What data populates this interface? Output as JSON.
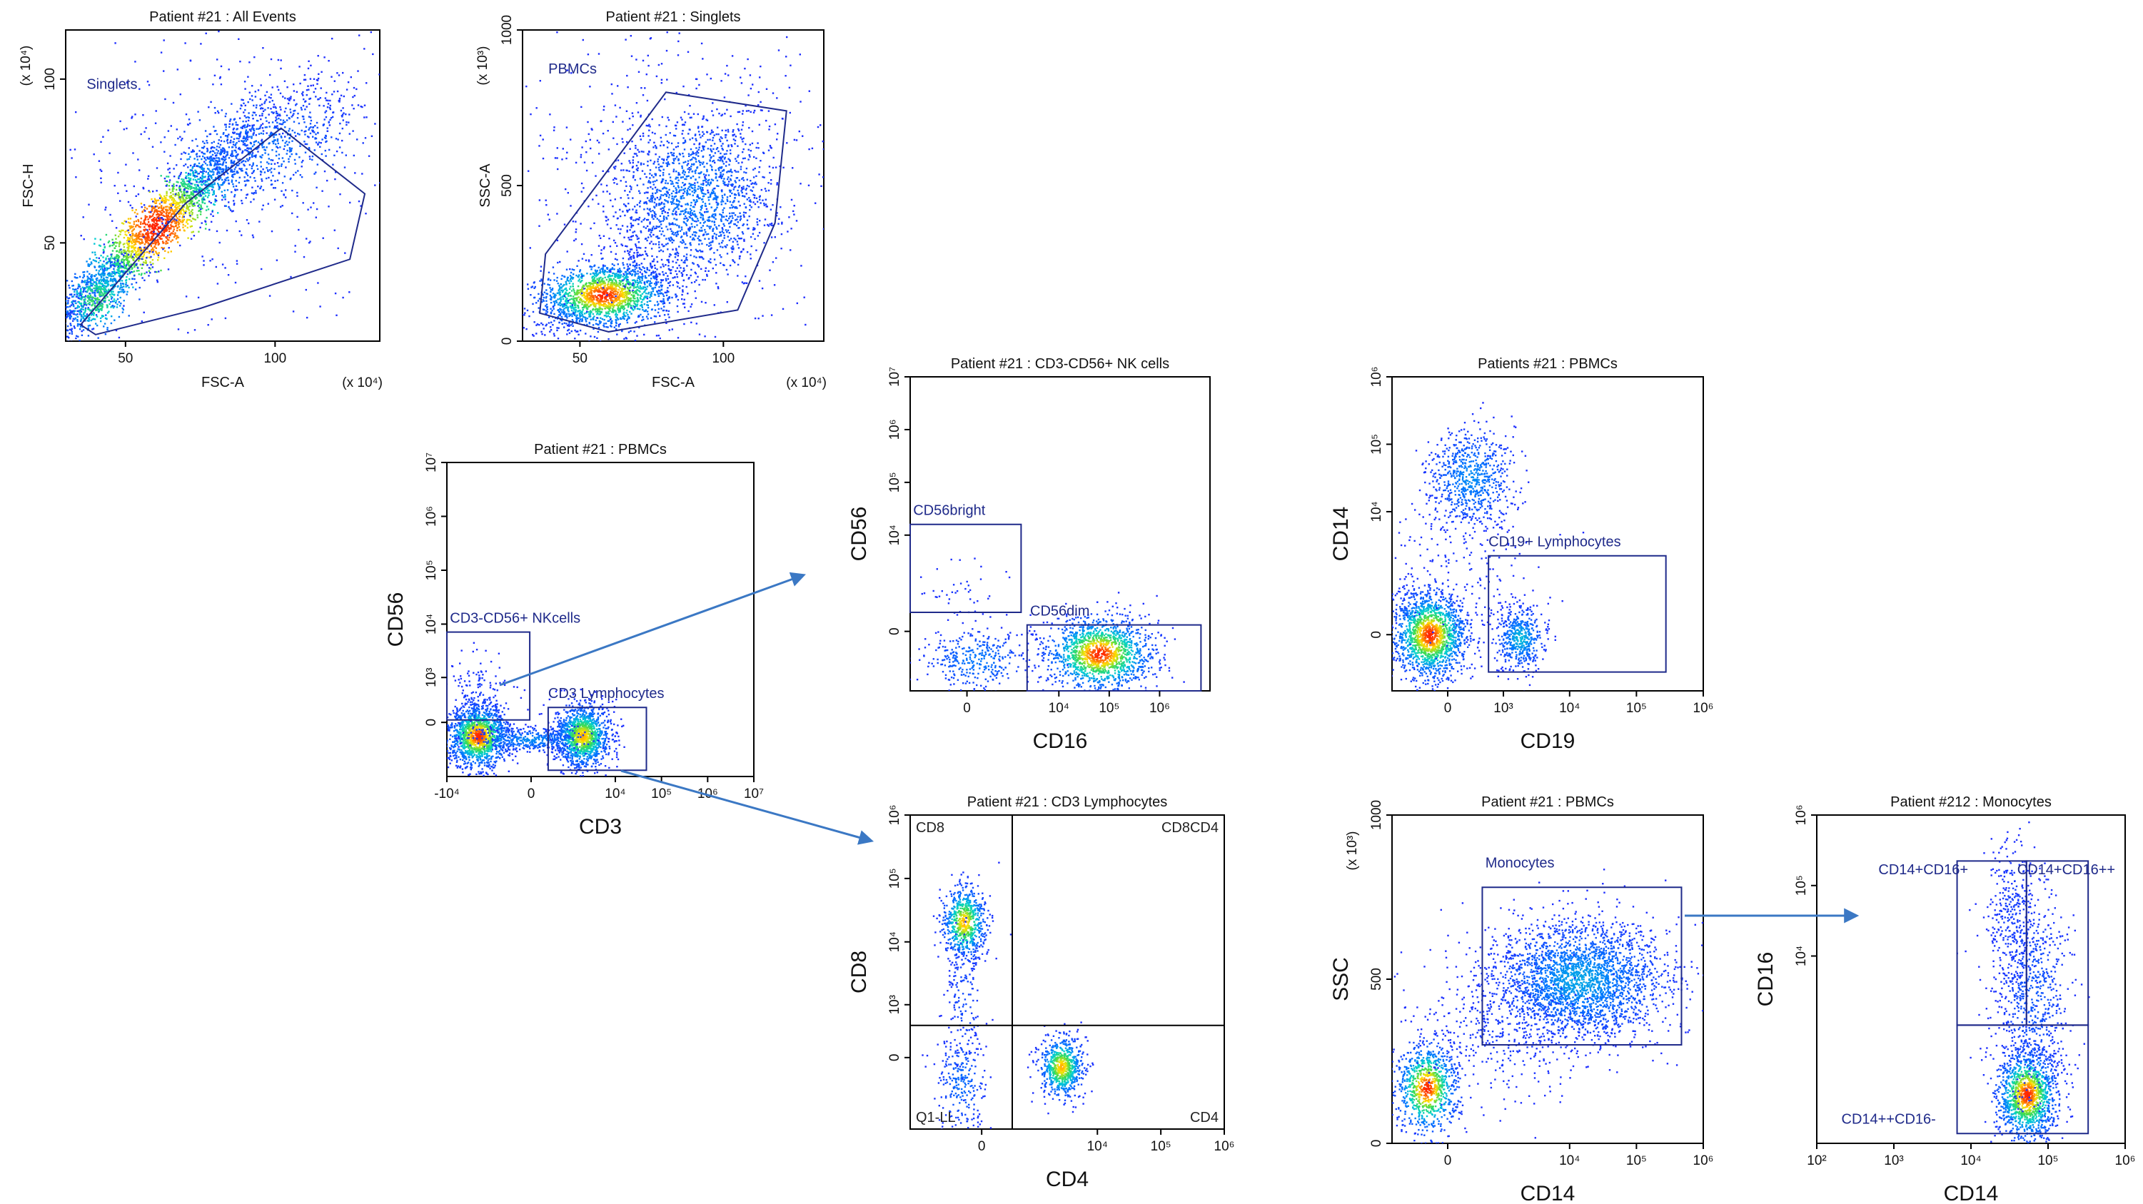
{
  "colors": {
    "axis": "#000000",
    "gate": "#1f2a8a",
    "gate_label": "#1f2a8a",
    "arrow": "#3b78c4",
    "density_low": "#1e2cff",
    "density_mid": "#00d0d0",
    "density_high": "#ffe000",
    "density_peak": "#ff2000"
  },
  "chart_data": [
    {
      "id": "p1",
      "type": "scatter",
      "title": "Patient #21 : All Events",
      "xlabel": "FSC-A",
      "ylabel": "FSC-H",
      "xmult": "(x 10⁴)",
      "ymult": "(x 10⁴)",
      "xscale": "linear",
      "yscale": "linear",
      "xlim": [
        30,
        135
      ],
      "ylim": [
        20,
        115
      ],
      "xticks": [
        {
          "v": 50,
          "t": "50"
        },
        {
          "v": 100,
          "t": "100"
        }
      ],
      "yticks": [
        {
          "v": 50,
          "t": "50"
        },
        {
          "v": 100,
          "t": "100"
        }
      ],
      "clusters": [
        {
          "cx": 60,
          "cy": 55,
          "sx": 18,
          "sy": 16,
          "rot": 0.78,
          "rho": 0.95,
          "n": 2200,
          "d": 1.0
        },
        {
          "cx": 40,
          "cy": 33,
          "sx": 8,
          "sy": 7,
          "rho": 0.7,
          "n": 500,
          "d": 0.7
        },
        {
          "cx": 95,
          "cy": 80,
          "sx": 18,
          "sy": 10,
          "rho": 0.6,
          "n": 800,
          "d": 0.3
        },
        {
          "cx": 85,
          "cy": 70,
          "sx": 30,
          "sy": 25,
          "rho": 0.2,
          "n": 400,
          "d": 0.05
        }
      ],
      "gates": [
        {
          "name": "Singlets",
          "label": "Singlets",
          "labelAt": [
            37,
            97
          ],
          "poly": [
            [
              35,
              25
            ],
            [
              70,
              62
            ],
            [
              102,
              85
            ],
            [
              130,
              65
            ],
            [
              125,
              45
            ],
            [
              75,
              30
            ],
            [
              40,
              22
            ]
          ]
        }
      ]
    },
    {
      "id": "p2",
      "type": "scatter",
      "title": "Patient #21 : Singlets",
      "xlabel": "FSC-A",
      "ylabel": "SSC-A",
      "xmult": "(x 10⁴)",
      "ymult": "(x 10³)",
      "xscale": "linear",
      "yscale": "linear",
      "xlim": [
        30,
        135
      ],
      "ylim": [
        0,
        1000
      ],
      "xticks": [
        {
          "v": 50,
          "t": "50"
        },
        {
          "v": 100,
          "t": "100"
        }
      ],
      "yticks": [
        {
          "v": 0,
          "t": "0"
        },
        {
          "v": 500,
          "t": "500"
        },
        {
          "v": 1000,
          "t": "1000"
        }
      ],
      "clusters": [
        {
          "cx": 58,
          "cy": 150,
          "sx": 12,
          "sy": 55,
          "rho": 0.3,
          "n": 1800,
          "d": 1.0
        },
        {
          "cx": 90,
          "cy": 460,
          "sx": 14,
          "sy": 140,
          "rho": 0.2,
          "n": 1600,
          "d": 0.35
        },
        {
          "cx": 80,
          "cy": 500,
          "sx": 30,
          "sy": 280,
          "rho": 0.1,
          "n": 500,
          "d": 0.04
        }
      ],
      "gates": [
        {
          "name": "PBMCs",
          "label": "PBMCs",
          "labelAt": [
            39,
            860
          ],
          "poly": [
            [
              38,
              280
            ],
            [
              80,
              800
            ],
            [
              122,
              740
            ],
            [
              118,
              380
            ],
            [
              105,
              100
            ],
            [
              60,
              30
            ],
            [
              36,
              90
            ]
          ]
        }
      ]
    },
    {
      "id": "p3",
      "type": "scatter",
      "title": "Patient #21 : PBMCs",
      "xlabel": "CD3",
      "ylabel": "CD56",
      "xscale": "logicle",
      "yscale": "logicle",
      "xlim": [
        -10000,
        10000000
      ],
      "ylim": [
        -1500,
        10000000
      ],
      "xticks": [
        {
          "v": -10000,
          "t": "-10⁴"
        },
        {
          "v": 0,
          "t": "0"
        },
        {
          "v": 10000,
          "t": "10⁴"
        },
        {
          "v": 100000,
          "t": "10⁵"
        },
        {
          "v": 1000000,
          "t": "10⁶"
        },
        {
          "v": 10000000,
          "t": "10⁷"
        }
      ],
      "yticks": [
        {
          "v": 0,
          "t": "0"
        },
        {
          "v": 1000,
          "t": "10³"
        },
        {
          "v": 10000,
          "t": "10⁴"
        },
        {
          "v": 100000,
          "t": "10⁵"
        },
        {
          "v": 1000000,
          "t": "10⁶"
        },
        {
          "v": 10000000,
          "t": "10⁷"
        }
      ],
      "clusters": [
        {
          "tx": 0.1,
          "ty": 0.13,
          "sx": 0.05,
          "sy": 0.05,
          "rho": 0,
          "n": 1400,
          "d": 1.0
        },
        {
          "tx": 0.44,
          "ty": 0.13,
          "sx": 0.045,
          "sy": 0.05,
          "rho": 0,
          "n": 1300,
          "d": 0.9
        },
        {
          "tx": 0.27,
          "ty": 0.12,
          "sx": 0.1,
          "sy": 0.02,
          "rho": 0,
          "n": 400,
          "d": 0.4
        },
        {
          "tx": 0.1,
          "ty": 0.25,
          "sx": 0.05,
          "sy": 0.07,
          "rho": 0,
          "n": 150,
          "d": 0.1
        }
      ],
      "gates": [
        {
          "name": "CD3-CD56+ NKcells",
          "label": "CD3-CD56+ NKcells",
          "labelAt": [
            0.01,
            0.49
          ],
          "tpoly": [
            [
              0.0,
              0.18
            ],
            [
              0.27,
              0.18
            ],
            [
              0.27,
              0.46
            ],
            [
              0.0,
              0.46
            ]
          ]
        },
        {
          "name": "CD3 Lymphocytes",
          "label": "CD3 Lymphocytes",
          "labelAt": [
            0.33,
            0.25
          ],
          "tpoly": [
            [
              0.33,
              0.02
            ],
            [
              0.65,
              0.02
            ],
            [
              0.65,
              0.22
            ],
            [
              0.33,
              0.22
            ]
          ]
        }
      ]
    },
    {
      "id": "p4",
      "type": "scatter",
      "title": "Patient #21 : CD3-CD56+ NK cells",
      "xlabel": "CD16",
      "ylabel": "CD56",
      "xscale": "logicle",
      "yscale": "logicle",
      "xlim": [
        -2000,
        10000000
      ],
      "ylim": [
        -2000,
        10000000
      ],
      "xticks": [
        {
          "v": 0,
          "t": "0"
        },
        {
          "v": 10000,
          "t": "10⁴"
        },
        {
          "v": 100000,
          "t": "10⁵"
        },
        {
          "v": 1000000,
          "t": "10⁶"
        }
      ],
      "yticks": [
        {
          "v": 0,
          "t": "0"
        },
        {
          "v": 10000,
          "t": "10⁴"
        },
        {
          "v": 100000,
          "t": "10⁵"
        },
        {
          "v": 1000000,
          "t": "10⁶"
        },
        {
          "v": 10000000,
          "t": "10⁷"
        }
      ],
      "clusters": [
        {
          "tx": 0.63,
          "ty": 0.12,
          "sx": 0.09,
          "sy": 0.06,
          "rho": 0,
          "n": 1500,
          "d": 1.0
        },
        {
          "tx": 0.22,
          "ty": 0.1,
          "sx": 0.09,
          "sy": 0.05,
          "rho": 0,
          "n": 350,
          "d": 0.35
        },
        {
          "tx": 0.16,
          "ty": 0.33,
          "sx": 0.07,
          "sy": 0.06,
          "rho": 0,
          "n": 40,
          "d": 0.05
        }
      ],
      "gates": [
        {
          "name": "CD56bright",
          "label": "CD56bright",
          "labelAt": [
            0.01,
            0.56
          ],
          "tpoly": [
            [
              0.0,
              0.25
            ],
            [
              0.37,
              0.25
            ],
            [
              0.37,
              0.53
            ],
            [
              0.0,
              0.53
            ]
          ]
        },
        {
          "name": "CD56dim",
          "label": "CD56dim",
          "labelAt": [
            0.4,
            0.24
          ],
          "tpoly": [
            [
              0.39,
              0.0
            ],
            [
              0.97,
              0.0
            ],
            [
              0.97,
              0.21
            ],
            [
              0.39,
              0.21
            ]
          ]
        }
      ]
    },
    {
      "id": "p5",
      "type": "scatter",
      "title": "Patients #21 : PBMCs",
      "xlabel": "CD19",
      "ylabel": "CD14",
      "xscale": "logicle",
      "yscale": "logicle",
      "xlim": [
        -1000,
        1000000
      ],
      "ylim": [
        -1000,
        1000000
      ],
      "xticks": [
        {
          "v": 0,
          "t": "0"
        },
        {
          "v": 1000,
          "t": "10³"
        },
        {
          "v": 10000,
          "t": "10⁴"
        },
        {
          "v": 100000,
          "t": "10⁵"
        },
        {
          "v": 1000000,
          "t": "10⁶"
        }
      ],
      "yticks": [
        {
          "v": 0,
          "t": "0"
        },
        {
          "v": 10000,
          "t": "10⁴"
        },
        {
          "v": 100000,
          "t": "10⁵"
        },
        {
          "v": 1000000,
          "t": "10⁶"
        }
      ],
      "clusters": [
        {
          "tx": 0.12,
          "ty": 0.18,
          "sx": 0.06,
          "sy": 0.07,
          "rho": 0,
          "n": 1600,
          "d": 1.0
        },
        {
          "tx": 0.25,
          "ty": 0.68,
          "sx": 0.07,
          "sy": 0.08,
          "rho": 0,
          "n": 700,
          "d": 0.4
        },
        {
          "tx": 0.41,
          "ty": 0.17,
          "sx": 0.04,
          "sy": 0.05,
          "rho": 0,
          "n": 500,
          "d": 0.5
        },
        {
          "tx": 0.2,
          "ty": 0.38,
          "sx": 0.12,
          "sy": 0.15,
          "rho": 0,
          "n": 200,
          "d": 0.05
        }
      ],
      "gates": [
        {
          "name": "CD19+ Lymphocytes",
          "label": "CD19+ Lymphocytes",
          "labelAt": [
            0.31,
            0.46
          ],
          "tpoly": [
            [
              0.31,
              0.06
            ],
            [
              0.88,
              0.06
            ],
            [
              0.88,
              0.43
            ],
            [
              0.31,
              0.43
            ]
          ]
        }
      ]
    },
    {
      "id": "p6",
      "type": "scatter",
      "title": "Patient #21 : CD3 Lymphocytes",
      "xlabel": "CD4",
      "ylabel": "CD8",
      "xscale": "logicle",
      "yscale": "logicle",
      "xlim": [
        -2000,
        1000000
      ],
      "ylim": [
        -2000,
        1000000
      ],
      "xticks": [
        {
          "v": 0,
          "t": "0"
        },
        {
          "v": 10000,
          "t": "10⁴"
        },
        {
          "v": 100000,
          "t": "10⁵"
        },
        {
          "v": 1000000,
          "t": "10⁶"
        }
      ],
      "yticks": [
        {
          "v": 0,
          "t": "0"
        },
        {
          "v": 1000,
          "t": "10³"
        },
        {
          "v": 10000,
          "t": "10⁴"
        },
        {
          "v": 100000,
          "t": "10⁵"
        },
        {
          "v": 1000000,
          "t": "10⁶"
        }
      ],
      "clusters": [
        {
          "tx": 0.17,
          "ty": 0.66,
          "sx": 0.035,
          "sy": 0.06,
          "rho": 0,
          "n": 700,
          "d": 0.9
        },
        {
          "tx": 0.48,
          "ty": 0.2,
          "sx": 0.035,
          "sy": 0.05,
          "rho": 0,
          "n": 700,
          "d": 0.9
        },
        {
          "tx": 0.16,
          "ty": 0.15,
          "sx": 0.04,
          "sy": 0.08,
          "rho": 0,
          "n": 250,
          "d": 0.3
        },
        {
          "tx": 0.17,
          "ty": 0.42,
          "sx": 0.03,
          "sy": 0.12,
          "rho": 0,
          "n": 150,
          "d": 0.15
        }
      ],
      "quadrant": {
        "tx": 0.325,
        "ty": 0.33
      },
      "quadLabels": {
        "ul": "CD8",
        "ur": "CD8CD4",
        "ll": "Q1-LL",
        "lr": "CD4"
      },
      "gates": []
    },
    {
      "id": "p7",
      "type": "scatter",
      "title": "Patient #21 : PBMCs",
      "xlabel": "CD14",
      "ylabel": "SSC",
      "ymult": "(x 10³)",
      "xscale": "logicle",
      "yscale": "linear",
      "xlim": [
        -1000,
        1000000
      ],
      "ylim": [
        0,
        1000
      ],
      "xticks": [
        {
          "v": 0,
          "t": "0"
        },
        {
          "v": 10000,
          "t": "10⁴"
        },
        {
          "v": 100000,
          "t": "10⁵"
        },
        {
          "v": 1000000,
          "t": "10⁶"
        }
      ],
      "yticks": [
        {
          "v": 0,
          "t": "0"
        },
        {
          "v": 500,
          "t": "500"
        },
        {
          "v": 1000,
          "t": "1000"
        }
      ],
      "clusters": [
        {
          "tx": 0.11,
          "ty": 0.17,
          "sx": 0.05,
          "sy": 0.07,
          "rho": 0,
          "n": 900,
          "d": 1.0
        },
        {
          "tx": 0.6,
          "ty": 0.5,
          "sx": 0.14,
          "sy": 0.09,
          "rho": 0,
          "n": 2600,
          "d": 0.45
        },
        {
          "tx": 0.35,
          "ty": 0.35,
          "sx": 0.14,
          "sy": 0.12,
          "rho": 0,
          "n": 400,
          "d": 0.08
        }
      ],
      "gates": [
        {
          "name": "Monocytes",
          "label": "Monocytes",
          "labelAt": [
            0.3,
            0.84
          ],
          "tpoly": [
            [
              0.29,
              0.3
            ],
            [
              0.93,
              0.3
            ],
            [
              0.93,
              0.78
            ],
            [
              0.29,
              0.78
            ]
          ]
        }
      ]
    },
    {
      "id": "p8",
      "type": "scatter",
      "title": "Patient #212 : Monocytes",
      "xlabel": "CD14",
      "ylabel": "CD16",
      "xscale": "log",
      "yscale": "logicle",
      "xlim": [
        100,
        1000000
      ],
      "ylim": [
        -1000,
        1000000
      ],
      "xticks": [
        {
          "v": 100,
          "t": "10²"
        },
        {
          "v": 1000,
          "t": "10³"
        },
        {
          "v": 10000,
          "t": "10⁴"
        },
        {
          "v": 100000,
          "t": "10⁵"
        },
        {
          "v": 1000000,
          "t": "10⁶"
        }
      ],
      "yticks": [
        {
          "v": 10000,
          "t": "10⁴"
        },
        {
          "v": 100000,
          "t": "10⁵"
        },
        {
          "v": 1000000,
          "t": "10⁶"
        }
      ],
      "clusters": [
        {
          "tx": 0.68,
          "ty": 0.15,
          "sx": 0.05,
          "sy": 0.07,
          "rho": 0,
          "n": 1300,
          "d": 1.0
        },
        {
          "tx": 0.7,
          "ty": 0.45,
          "sx": 0.06,
          "sy": 0.18,
          "rho": 0,
          "n": 700,
          "d": 0.2
        },
        {
          "tx": 0.63,
          "ty": 0.7,
          "sx": 0.04,
          "sy": 0.12,
          "rho": 0,
          "n": 300,
          "d": 0.1
        }
      ],
      "gates": [
        {
          "name": "CD14+CD16+",
          "label": "CD14+CD16+",
          "labelAt": [
            0.2,
            0.82
          ],
          "tpoly": [
            [
              0.455,
              0.36
            ],
            [
              0.68,
              0.36
            ],
            [
              0.68,
              0.86
            ],
            [
              0.455,
              0.86
            ]
          ]
        },
        {
          "name": "CD14+CD16++",
          "label": "CD14+CD16++",
          "labelAt": [
            0.65,
            0.82
          ],
          "tpoly": [
            [
              0.68,
              0.36
            ],
            [
              0.88,
              0.36
            ],
            [
              0.88,
              0.86
            ],
            [
              0.68,
              0.86
            ]
          ]
        },
        {
          "name": "CD14++CD16-",
          "label": "CD14++CD16-",
          "labelAt": [
            0.08,
            0.06
          ],
          "tpoly": [
            [
              0.455,
              0.03
            ],
            [
              0.88,
              0.03
            ],
            [
              0.88,
              0.36
            ],
            [
              0.455,
              0.36
            ]
          ]
        }
      ]
    }
  ]
}
